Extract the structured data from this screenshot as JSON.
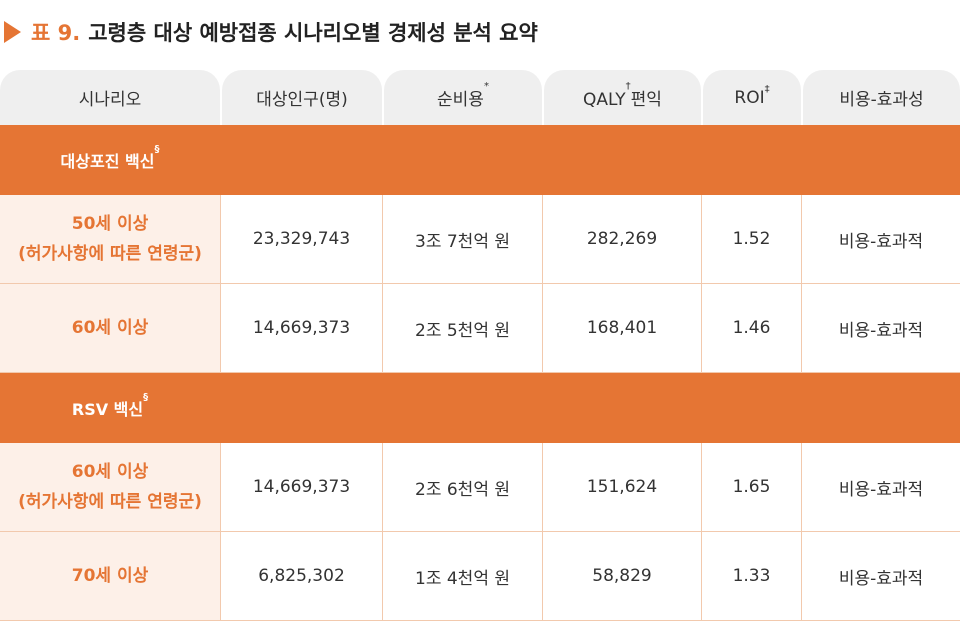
{
  "title": {
    "label": "표 9.",
    "text": "고령층 대상 예방접종 시나리오별 경제성 분석 요약"
  },
  "table": {
    "headers": [
      [
        {
          "text": "시나리오"
        }
      ],
      [
        {
          "text": "대상인구(명)"
        }
      ],
      [
        {
          "text": "순비용"
        },
        {
          "sup": "*"
        }
      ],
      [
        {
          "text": "QALY"
        },
        {
          "sup": "†"
        },
        {
          "text": "편익"
        }
      ],
      [
        {
          "text": "ROI"
        },
        {
          "sup": "‡"
        }
      ],
      [
        {
          "text": "비용-효과성"
        }
      ]
    ],
    "sections": [
      {
        "title": [
          {
            "text": "대상포진 백신"
          },
          {
            "sup": "§"
          }
        ],
        "rows": [
          {
            "label": [
              "50세 이상",
              "(허가사항에 따른 연령군)"
            ],
            "cells": [
              "23,329,743",
              "3조 7천억 원",
              "282,269",
              "1.52",
              "비용-효과적"
            ]
          },
          {
            "label": [
              "60세 이상"
            ],
            "cells": [
              "14,669,373",
              "2조 5천억 원",
              "168,401",
              "1.46",
              "비용-효과적"
            ]
          }
        ]
      },
      {
        "title": [
          {
            "text": "RSV 백신"
          },
          {
            "sup": "§"
          }
        ],
        "rows": [
          {
            "label": [
              "60세 이상",
              "(허가사항에 따른 연령군)"
            ],
            "cells": [
              "14,669,373",
              "2조 6천억 원",
              "151,624",
              "1.65",
              "비용-효과적"
            ]
          },
          {
            "label": [
              "70세 이상"
            ],
            "cells": [
              "6,825,302",
              "1조 4천억 원",
              "58,829",
              "1.33",
              "비용-효과적"
            ]
          }
        ]
      }
    ]
  }
}
